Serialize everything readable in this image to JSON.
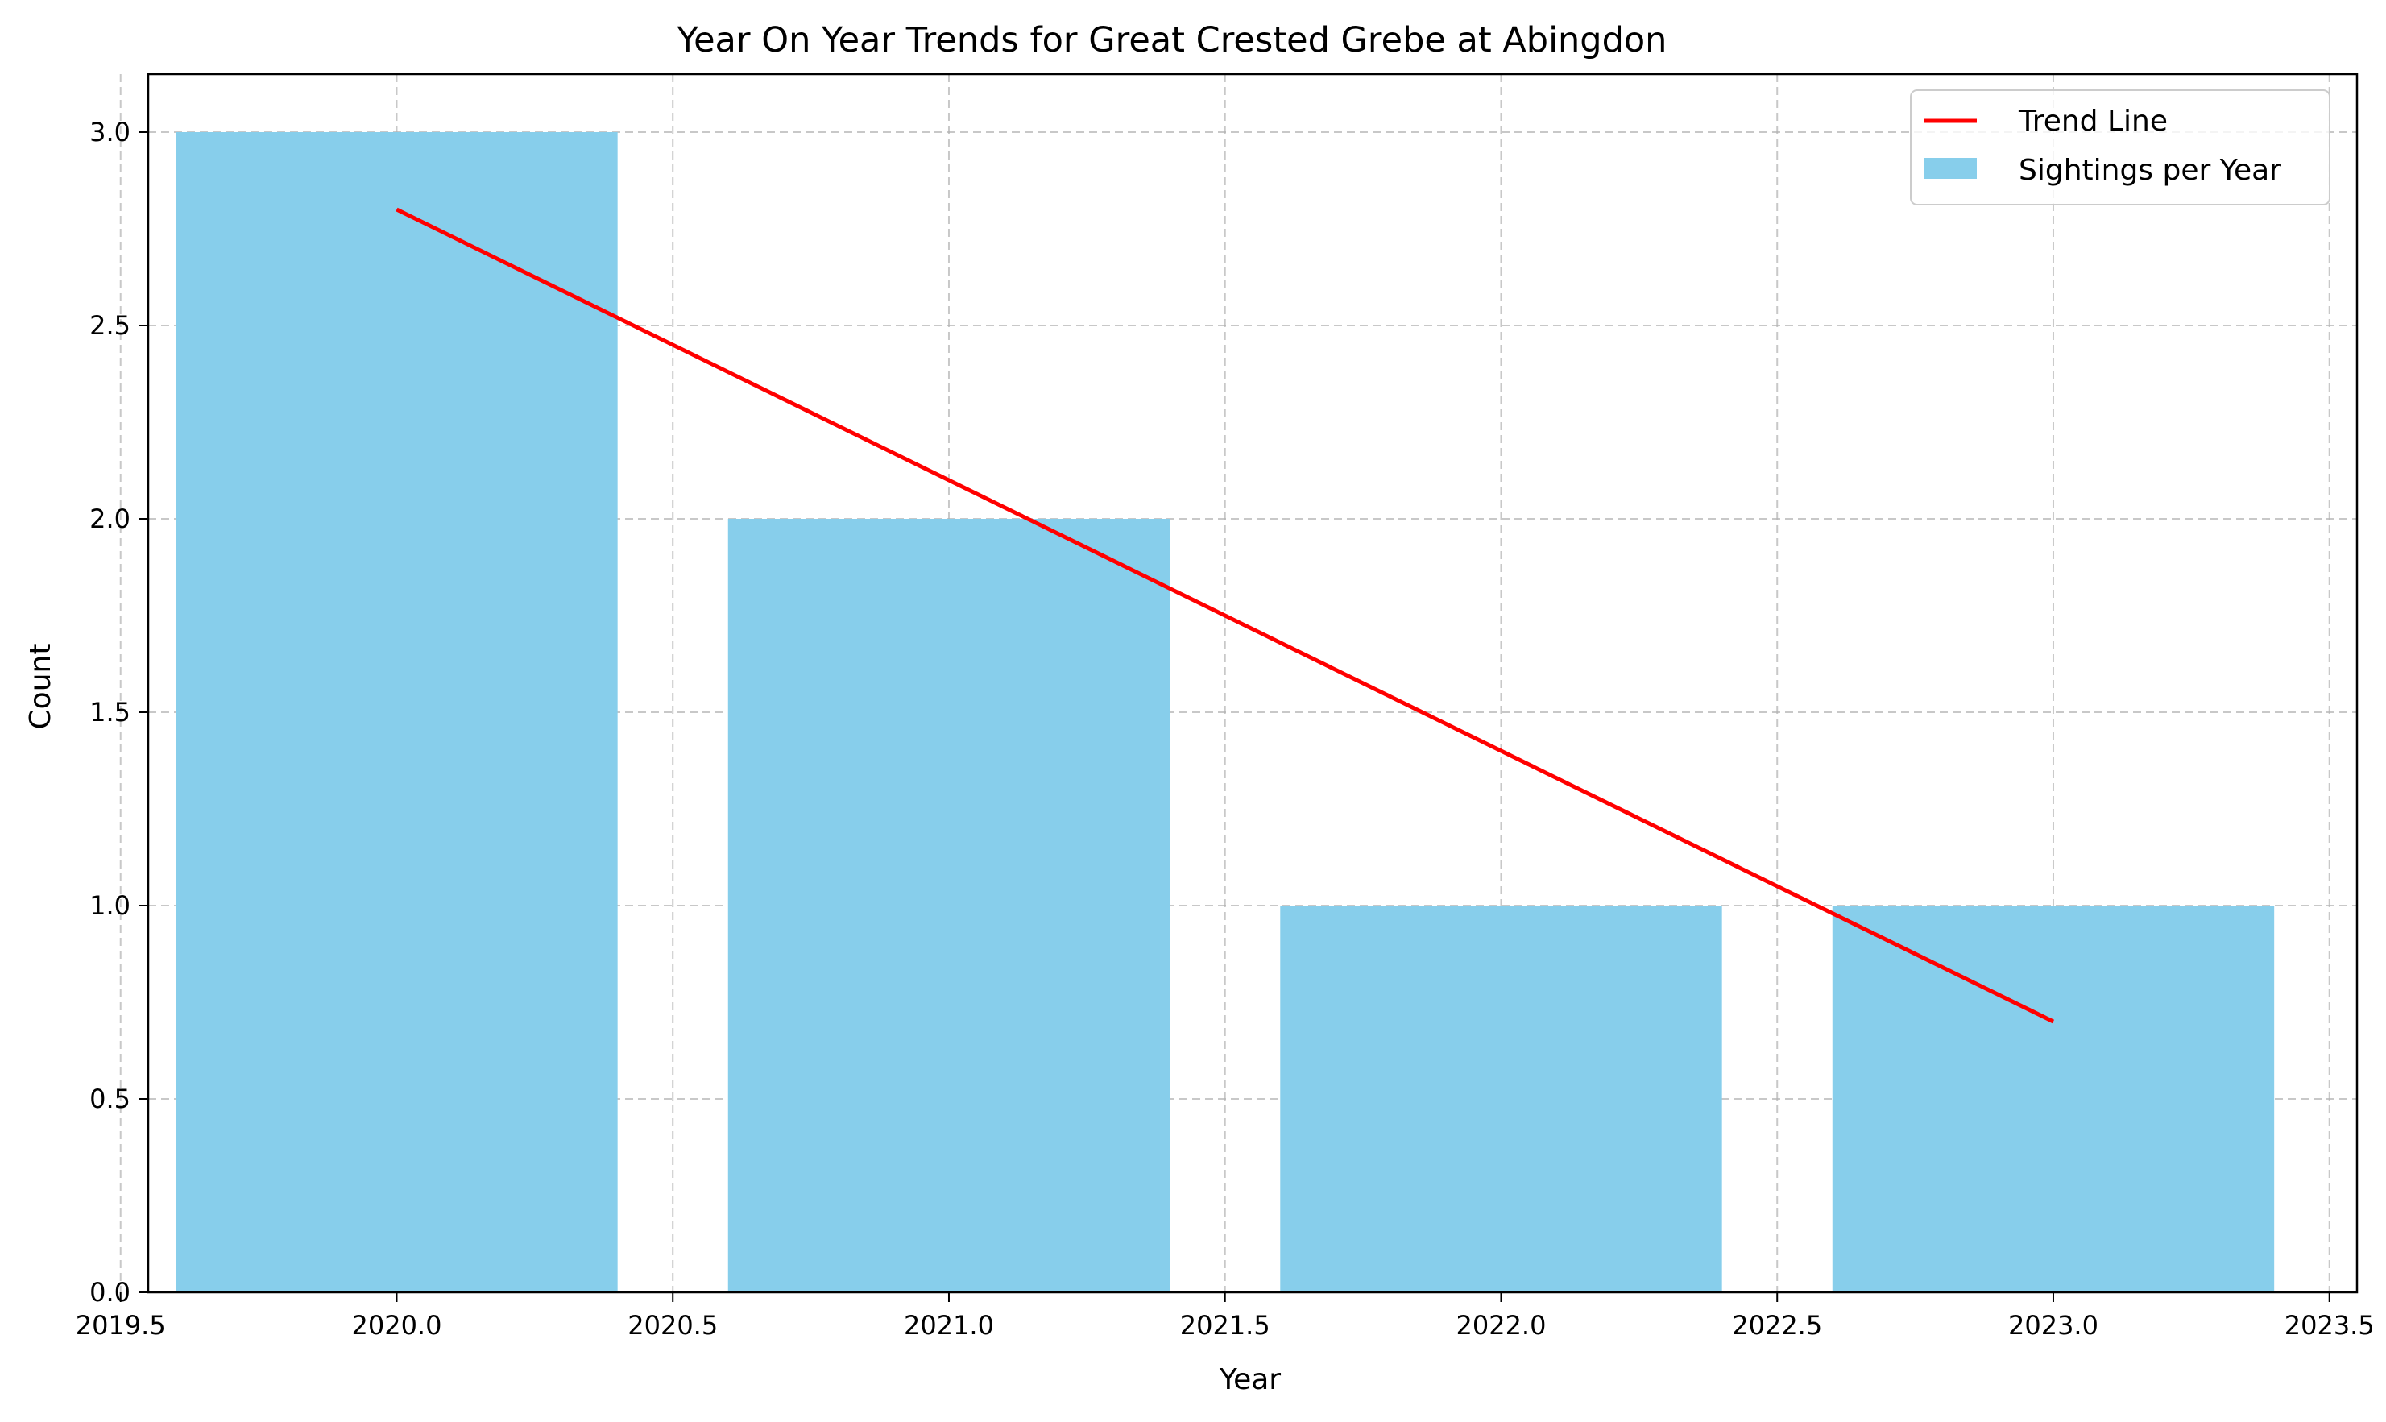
{
  "chart_data": {
    "type": "bar",
    "title": "Year On Year Trends for Great Crested Grebe at Abingdon",
    "xlabel": "Year",
    "ylabel": "Count",
    "xlim": [
      2019.55,
      2023.55
    ],
    "ylim": [
      0,
      3.15
    ],
    "x_ticks": [
      2019.5,
      2020.0,
      2020.5,
      2021.0,
      2021.5,
      2022.0,
      2022.5,
      2023.0,
      2023.5
    ],
    "x_tick_labels": [
      "2019.5",
      "2020.0",
      "2020.5",
      "2021.0",
      "2021.5",
      "2022.0",
      "2022.5",
      "2023.0",
      "2023.5"
    ],
    "y_ticks": [
      0,
      0.5,
      1.0,
      1.5,
      2.0,
      2.5,
      3.0
    ],
    "y_tick_labels": [
      "0.0",
      "0.5",
      "1.0",
      "1.5",
      "2.0",
      "2.5",
      "3.0"
    ],
    "grid": true,
    "legend_position": "top-right",
    "bar_width": 0.8,
    "series": [
      {
        "name": "Sightings per Year",
        "kind": "bar",
        "color": "#87ceeb",
        "x": [
          2020,
          2021,
          2022,
          2023
        ],
        "values": [
          3,
          2,
          1,
          1
        ]
      },
      {
        "name": "Trend Line",
        "kind": "line",
        "color": "#ff0000",
        "x": [
          2020,
          2023
        ],
        "values": [
          2.8,
          0.7
        ]
      }
    ]
  }
}
